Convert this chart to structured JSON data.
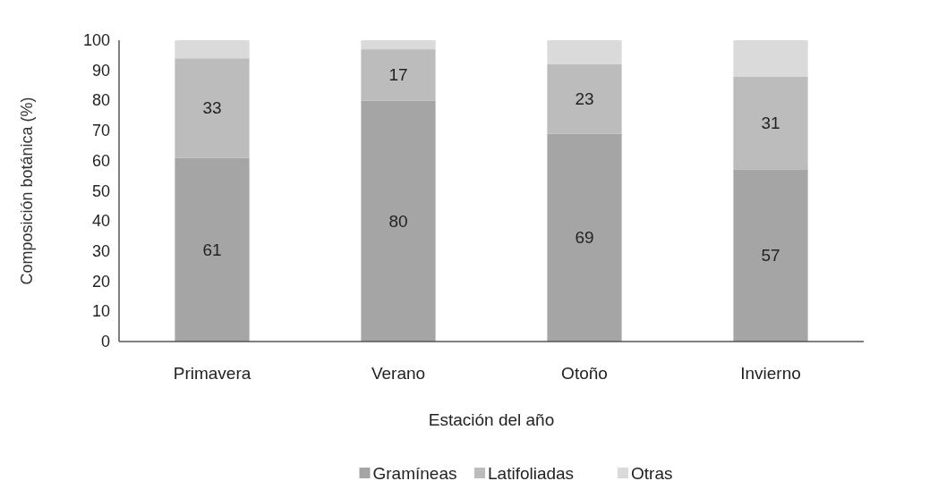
{
  "chart_data": {
    "type": "bar",
    "stacked": true,
    "xlabel": "Estación del año",
    "ylabel": "Composición botánica (%)",
    "categories": [
      "Primavera",
      "Verano",
      "Otoño",
      "Invierno"
    ],
    "series": [
      {
        "name": "Gramíneas",
        "color": "#a5a5a5",
        "values": [
          61,
          80,
          69,
          57
        ],
        "value_labels": [
          "61",
          "80",
          "69",
          "57"
        ]
      },
      {
        "name": "Latifoliadas",
        "color": "#bcbcbc",
        "values": [
          33,
          17,
          23,
          31
        ],
        "value_labels": [
          "33",
          "17",
          "23",
          "31"
        ]
      },
      {
        "name": "Otras",
        "color": "#dadada",
        "values": [
          6,
          3,
          8,
          12
        ]
      }
    ],
    "ylim": [
      0,
      100
    ],
    "yticks": [
      0,
      10,
      20,
      30,
      40,
      50,
      60,
      70,
      80,
      90,
      100
    ],
    "grid": false,
    "legend": "bottom"
  }
}
